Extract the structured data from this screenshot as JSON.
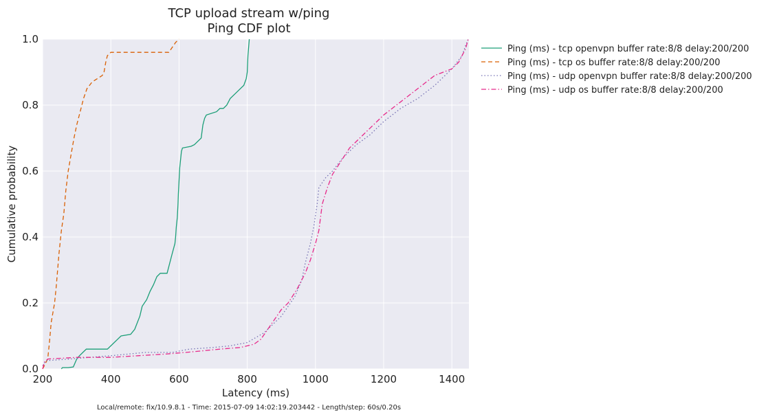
{
  "chart_data": {
    "type": "line",
    "title": "TCP upload stream w/ping",
    "subtitle": "Ping CDF plot",
    "xlabel": "Latency (ms)",
    "ylabel": "Cumulative probability",
    "xlim": [
      200,
      1450
    ],
    "ylim": [
      0.0,
      1.0
    ],
    "xticks": [
      200,
      400,
      600,
      800,
      1000,
      1200,
      1400
    ],
    "xtick_labels": [
      "200",
      "400",
      "600",
      "800",
      "1000",
      "1200",
      "1400"
    ],
    "yticks": [
      0.0,
      0.2,
      0.4,
      0.6,
      0.8,
      1.0
    ],
    "ytick_labels": [
      "0.0",
      "0.2",
      "0.4",
      "0.6",
      "0.8",
      "1.0"
    ],
    "grid": true,
    "legend_placement": "outside-top-right",
    "footer": "Local/remote: fix/10.9.8.1 - Time: 2015-07-09 14:02:19.203442 - Length/step: 60s/0.20s",
    "series": [
      {
        "name": "Ping (ms) - tcp openvpn buffer rate:8/8 delay:200/200",
        "color": "#1b9e77",
        "dash": "solid",
        "points": [
          [
            255,
            0.0
          ],
          [
            258,
            0.004
          ],
          [
            275,
            0.004
          ],
          [
            290,
            0.006
          ],
          [
            300,
            0.03
          ],
          [
            308,
            0.04
          ],
          [
            318,
            0.05
          ],
          [
            328,
            0.06
          ],
          [
            390,
            0.06
          ],
          [
            400,
            0.07
          ],
          [
            420,
            0.09
          ],
          [
            430,
            0.1
          ],
          [
            458,
            0.105
          ],
          [
            470,
            0.12
          ],
          [
            485,
            0.16
          ],
          [
            492,
            0.19
          ],
          [
            505,
            0.21
          ],
          [
            515,
            0.235
          ],
          [
            525,
            0.255
          ],
          [
            535,
            0.28
          ],
          [
            545,
            0.29
          ],
          [
            565,
            0.29
          ],
          [
            580,
            0.35
          ],
          [
            588,
            0.38
          ],
          [
            590,
            0.4
          ],
          [
            592,
            0.43
          ],
          [
            595,
            0.46
          ],
          [
            597,
            0.5
          ],
          [
            598,
            0.53
          ],
          [
            602,
            0.61
          ],
          [
            604,
            0.63
          ],
          [
            607,
            0.66
          ],
          [
            610,
            0.67
          ],
          [
            635,
            0.675
          ],
          [
            645,
            0.68
          ],
          [
            665,
            0.7
          ],
          [
            670,
            0.74
          ],
          [
            675,
            0.76
          ],
          [
            680,
            0.77
          ],
          [
            710,
            0.78
          ],
          [
            720,
            0.79
          ],
          [
            730,
            0.79
          ],
          [
            740,
            0.8
          ],
          [
            750,
            0.82
          ],
          [
            770,
            0.84
          ],
          [
            790,
            0.86
          ],
          [
            797,
            0.88
          ],
          [
            800,
            0.9
          ],
          [
            802,
            0.95
          ],
          [
            806,
            1.0
          ]
        ]
      },
      {
        "name": "Ping (ms) - tcp os buffer rate:8/8 delay:200/200",
        "color": "#d95f02",
        "dash": "dashed",
        "points": [
          [
            200,
            0.0
          ],
          [
            215,
            0.03
          ],
          [
            220,
            0.08
          ],
          [
            225,
            0.14
          ],
          [
            235,
            0.2
          ],
          [
            240,
            0.25
          ],
          [
            248,
            0.35
          ],
          [
            255,
            0.42
          ],
          [
            262,
            0.47
          ],
          [
            268,
            0.54
          ],
          [
            275,
            0.6
          ],
          [
            285,
            0.66
          ],
          [
            292,
            0.7
          ],
          [
            300,
            0.74
          ],
          [
            310,
            0.78
          ],
          [
            320,
            0.82
          ],
          [
            330,
            0.85
          ],
          [
            345,
            0.87
          ],
          [
            360,
            0.88
          ],
          [
            375,
            0.89
          ],
          [
            380,
            0.9
          ],
          [
            385,
            0.93
          ],
          [
            390,
            0.95
          ],
          [
            400,
            0.96
          ],
          [
            510,
            0.96
          ],
          [
            570,
            0.96
          ],
          [
            590,
            0.99
          ],
          [
            600,
            1.0
          ]
        ]
      },
      {
        "name": "Ping (ms) - udp openvpn buffer rate:8/8 delay:200/200",
        "color": "#7570b3",
        "dash": "dotted",
        "points": [
          [
            200,
            0.01
          ],
          [
            210,
            0.025
          ],
          [
            280,
            0.03
          ],
          [
            350,
            0.036
          ],
          [
            400,
            0.04
          ],
          [
            500,
            0.05
          ],
          [
            580,
            0.05
          ],
          [
            630,
            0.06
          ],
          [
            700,
            0.065
          ],
          [
            750,
            0.07
          ],
          [
            800,
            0.08
          ],
          [
            850,
            0.11
          ],
          [
            870,
            0.13
          ],
          [
            900,
            0.16
          ],
          [
            920,
            0.19
          ],
          [
            940,
            0.22
          ],
          [
            960,
            0.27
          ],
          [
            970,
            0.32
          ],
          [
            985,
            0.38
          ],
          [
            995,
            0.43
          ],
          [
            1005,
            0.5
          ],
          [
            1010,
            0.55
          ],
          [
            1030,
            0.58
          ],
          [
            1050,
            0.6
          ],
          [
            1080,
            0.64
          ],
          [
            1120,
            0.68
          ],
          [
            1160,
            0.71
          ],
          [
            1200,
            0.75
          ],
          [
            1250,
            0.79
          ],
          [
            1300,
            0.82
          ],
          [
            1350,
            0.86
          ],
          [
            1400,
            0.91
          ],
          [
            1430,
            0.95
          ],
          [
            1440,
            0.98
          ],
          [
            1448,
            1.0
          ]
        ]
      },
      {
        "name": "Ping (ms) - udp os buffer rate:8/8 delay:200/200",
        "color": "#e7298a",
        "dash": "dashdot",
        "points": [
          [
            200,
            0.0
          ],
          [
            205,
            0.02
          ],
          [
            215,
            0.03
          ],
          [
            300,
            0.035
          ],
          [
            400,
            0.035
          ],
          [
            480,
            0.04
          ],
          [
            560,
            0.045
          ],
          [
            620,
            0.05
          ],
          [
            720,
            0.06
          ],
          [
            780,
            0.065
          ],
          [
            820,
            0.075
          ],
          [
            840,
            0.09
          ],
          [
            860,
            0.12
          ],
          [
            880,
            0.15
          ],
          [
            900,
            0.18
          ],
          [
            920,
            0.2
          ],
          [
            945,
            0.24
          ],
          [
            970,
            0.29
          ],
          [
            985,
            0.33
          ],
          [
            1000,
            0.38
          ],
          [
            1010,
            0.42
          ],
          [
            1020,
            0.5
          ],
          [
            1035,
            0.55
          ],
          [
            1050,
            0.59
          ],
          [
            1075,
            0.63
          ],
          [
            1100,
            0.67
          ],
          [
            1150,
            0.72
          ],
          [
            1200,
            0.77
          ],
          [
            1250,
            0.81
          ],
          [
            1300,
            0.85
          ],
          [
            1350,
            0.89
          ],
          [
            1400,
            0.91
          ],
          [
            1420,
            0.93
          ],
          [
            1440,
            0.97
          ],
          [
            1448,
            1.0
          ]
        ]
      }
    ]
  }
}
